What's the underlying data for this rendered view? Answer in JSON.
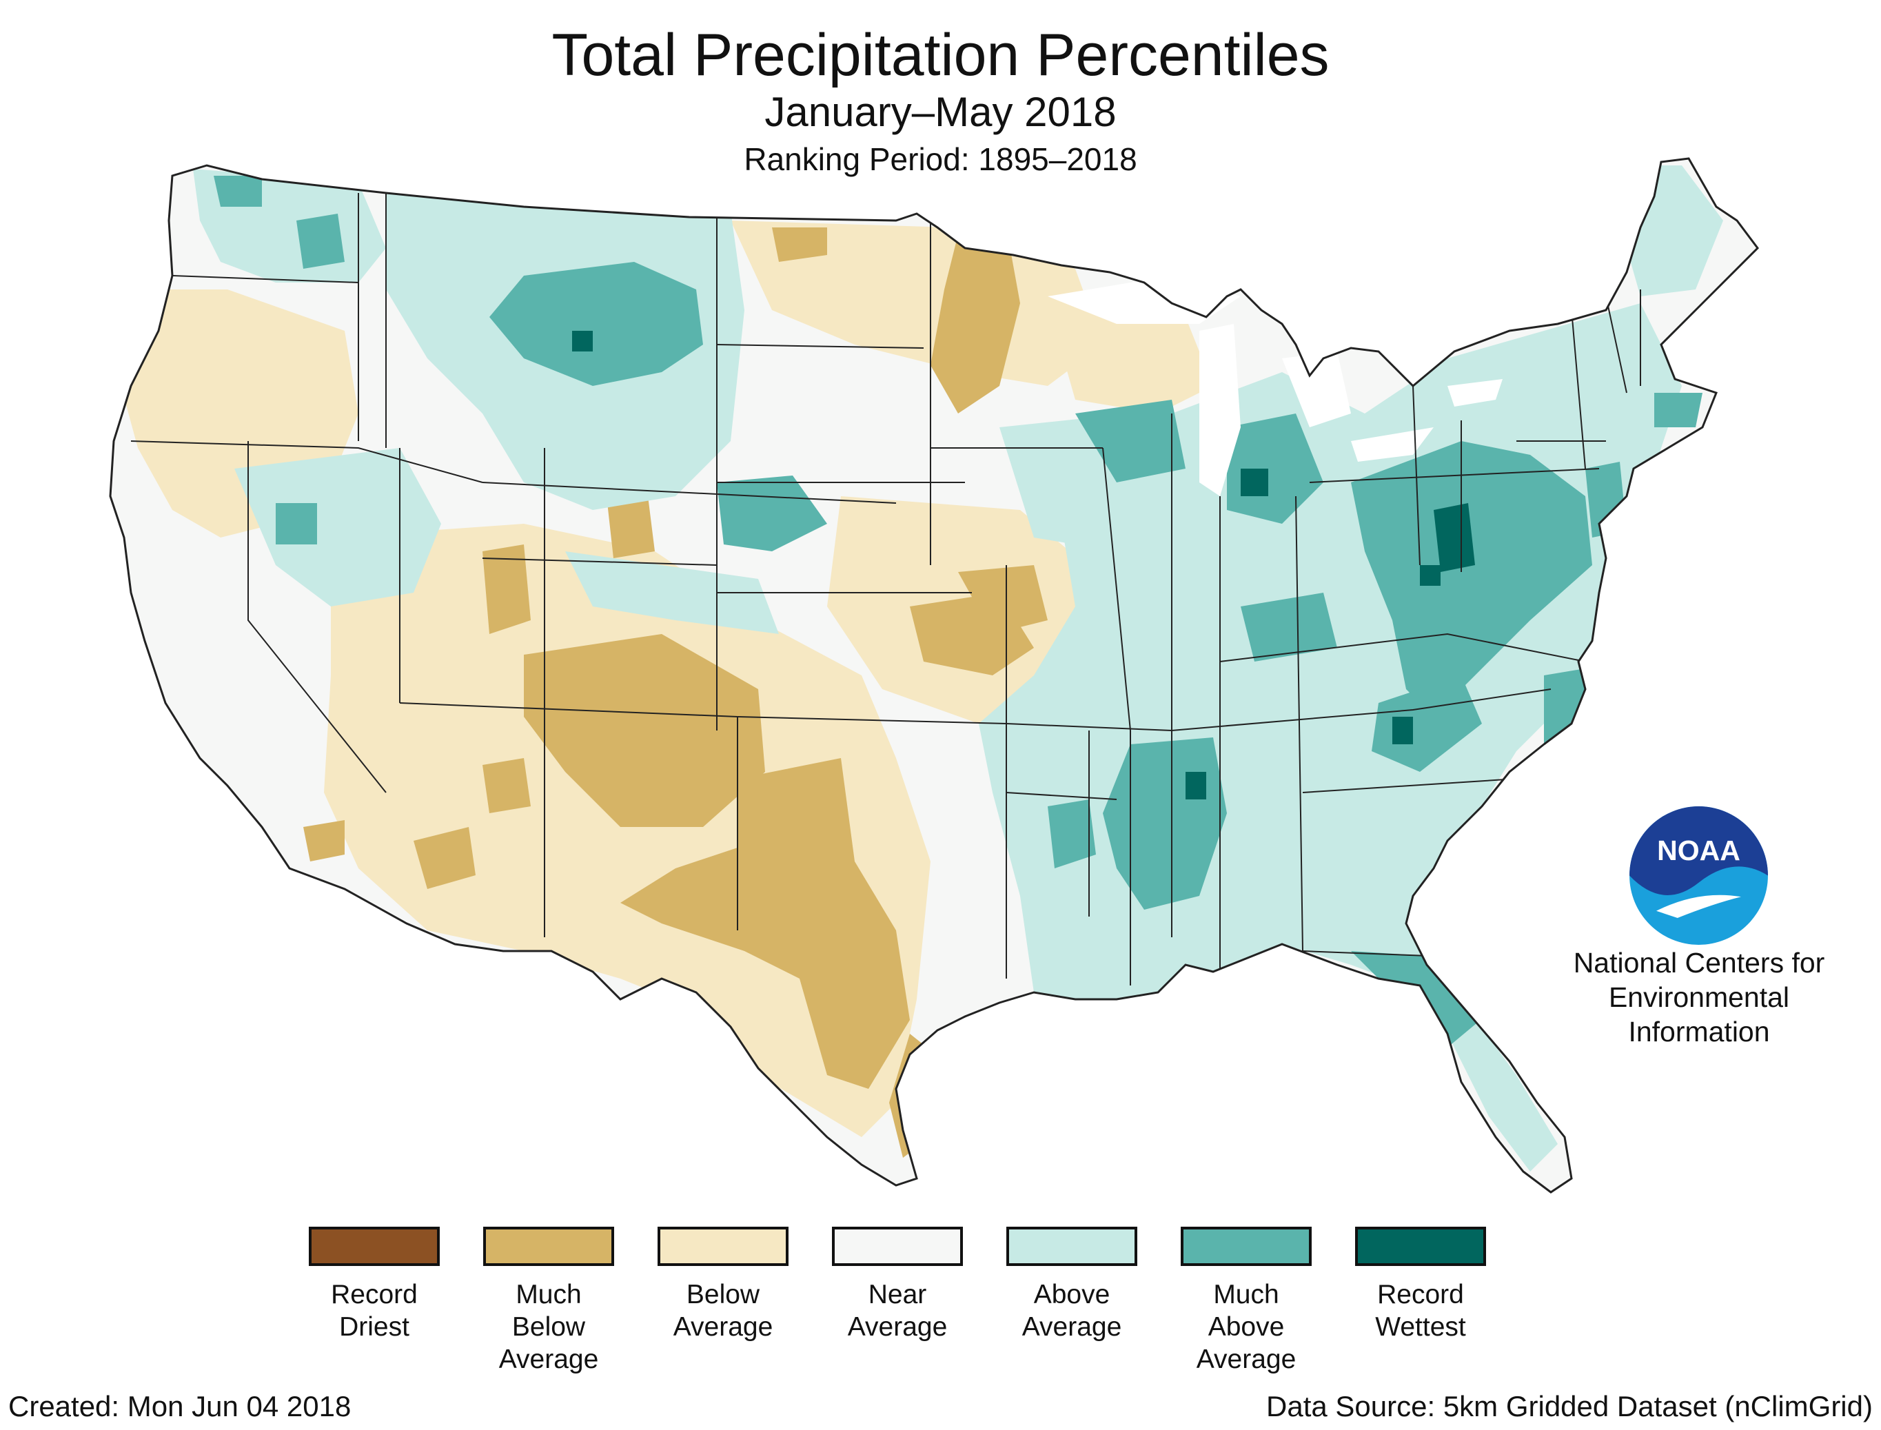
{
  "title": "Total Precipitation Percentiles",
  "subtitle": "January–May 2018",
  "ranking_period": "Ranking Period: 1895–2018",
  "map": {
    "region": "Contiguous United States",
    "features": [
      {
        "name": "southwest-dry-region",
        "category": "below",
        "color": "#f5e3bc"
      },
      {
        "name": "four-corners-much-below",
        "category": "much_below",
        "color": "#d6b466"
      },
      {
        "name": "west-texas-much-below",
        "category": "much_below",
        "color": "#d6b466"
      },
      {
        "name": "minnesota-much-below",
        "category": "much_below",
        "color": "#d6b466"
      },
      {
        "name": "montana-much-above",
        "category": "much_above",
        "color": "#5ab4ac"
      },
      {
        "name": "ohio-valley-much-above",
        "category": "much_above",
        "color": "#5ab4ac"
      },
      {
        "name": "mid-south-much-above",
        "category": "much_above",
        "color": "#5ab4ac"
      },
      {
        "name": "florida-much-above",
        "category": "much_above",
        "color": "#5ab4ac"
      },
      {
        "name": "mid-atlantic-record-wettest",
        "category": "record_wettest",
        "color": "#01665e"
      },
      {
        "name": "eastern-above-average",
        "category": "above",
        "color": "#c7eae5"
      }
    ]
  },
  "legend": [
    {
      "id": "record-driest",
      "label": "Record\nDriest",
      "color": "#8c5123"
    },
    {
      "id": "much-below",
      "label": "Much\nBelow\nAverage",
      "color": "#d6b466"
    },
    {
      "id": "below",
      "label": "Below\nAverage",
      "color": "#f6e8c3"
    },
    {
      "id": "near",
      "label": "Near\nAverage",
      "color": "#f6f7f6"
    },
    {
      "id": "above",
      "label": "Above\nAverage",
      "color": "#c7eae5"
    },
    {
      "id": "much-above",
      "label": "Much\nAbove\nAverage",
      "color": "#5ab4ac"
    },
    {
      "id": "record-wettest",
      "label": "Record\nWettest",
      "color": "#01665e"
    }
  ],
  "logo": {
    "text": "NOAA",
    "icon": "noaa-logo-icon",
    "primary": "#1c3f95",
    "secondary": "#1aa0dc"
  },
  "organization": "National Centers for\nEnvironmental\nInformation",
  "created": "Created: Mon Jun 04 2018",
  "data_source": "Data Source: 5km Gridded Dataset (nClimGrid)"
}
